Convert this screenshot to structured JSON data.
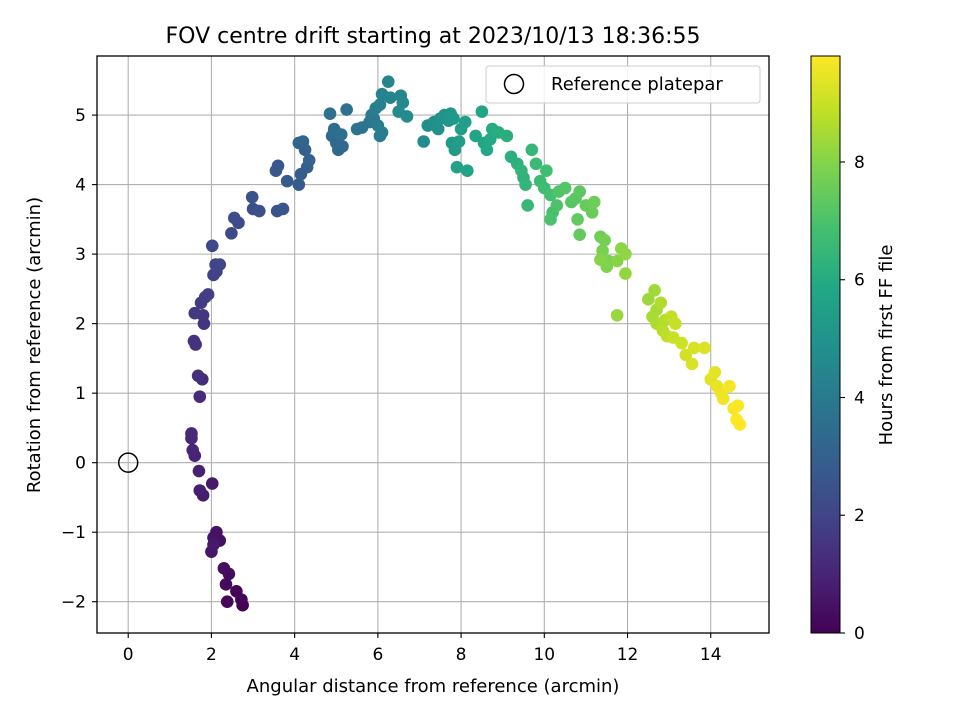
{
  "chart_data": {
    "type": "scatter",
    "title": "FOV centre drift starting at 2023/10/13 18:36:55",
    "xlabel": "Angular distance from reference (arcmin)",
    "ylabel": "Rotation from reference (arcmin)",
    "xlim": [
      -0.75,
      15.4
    ],
    "ylim": [
      -2.45,
      5.85
    ],
    "xticks": [
      0,
      2,
      4,
      6,
      8,
      10,
      12,
      14
    ],
    "yticks": [
      -2,
      -1,
      0,
      1,
      2,
      3,
      4,
      5
    ],
    "xtick_labels": [
      "0",
      "2",
      "4",
      "6",
      "8",
      "10",
      "12",
      "14"
    ],
    "ytick_labels": [
      "−2",
      "−1",
      "0",
      "1",
      "2",
      "3",
      "4",
      "5"
    ],
    "grid": true,
    "legend": {
      "placement": "top-right",
      "entries": [
        "Reference platepar"
      ]
    },
    "reference_point": {
      "label": "Reference platepar",
      "x": 0,
      "y": 0,
      "marker": "open-circle"
    },
    "colorbar": {
      "label": "Hours from first FF file",
      "colormap": "viridis",
      "range": [
        0,
        9.8
      ],
      "ticks": [
        0,
        2,
        4,
        6,
        8
      ],
      "tick_labels": [
        "0",
        "2",
        "4",
        "6",
        "8"
      ]
    },
    "series": [
      {
        "values_note_fields": [
          "x",
          "y",
          "hours"
        ],
        "points": [
          [
            2.75,
            -2.05,
            0.0
          ],
          [
            2.72,
            -1.97,
            0.06
          ],
          [
            2.6,
            -1.85,
            0.12
          ],
          [
            2.38,
            -2.0,
            0.18
          ],
          [
            2.35,
            -1.75,
            0.24
          ],
          [
            2.42,
            -1.6,
            0.3
          ],
          [
            2.3,
            -1.52,
            0.36
          ],
          [
            2.2,
            -1.12,
            0.42
          ],
          [
            2.12,
            -1.0,
            0.48
          ],
          [
            2.05,
            -1.08,
            0.54
          ],
          [
            2.0,
            -1.28,
            0.6
          ],
          [
            2.05,
            -1.18,
            0.66
          ],
          [
            2.02,
            -0.3,
            0.72
          ],
          [
            1.8,
            -0.47,
            0.78
          ],
          [
            1.72,
            -0.4,
            0.84
          ],
          [
            1.7,
            -0.12,
            0.9
          ],
          [
            1.6,
            0.1,
            0.96
          ],
          [
            1.55,
            0.18,
            1.02
          ],
          [
            1.52,
            0.35,
            1.08
          ],
          [
            1.52,
            0.42,
            1.14
          ],
          [
            1.72,
            0.95,
            1.2
          ],
          [
            1.78,
            1.2,
            1.26
          ],
          [
            1.68,
            1.25,
            1.32
          ],
          [
            1.62,
            1.7,
            1.38
          ],
          [
            1.58,
            1.75,
            1.44
          ],
          [
            1.82,
            2.0,
            1.5
          ],
          [
            1.8,
            2.12,
            1.56
          ],
          [
            1.6,
            2.15,
            1.62
          ],
          [
            1.75,
            2.3,
            1.68
          ],
          [
            1.85,
            2.38,
            1.74
          ],
          [
            1.92,
            2.42,
            1.8
          ],
          [
            2.05,
            2.7,
            1.86
          ],
          [
            2.12,
            2.75,
            1.92
          ],
          [
            2.1,
            2.85,
            1.98
          ],
          [
            2.2,
            2.85,
            2.04
          ],
          [
            2.02,
            3.12,
            2.1
          ],
          [
            2.48,
            3.3,
            2.16
          ],
          [
            2.65,
            3.45,
            2.22
          ],
          [
            2.55,
            3.52,
            2.28
          ],
          [
            3.0,
            3.65,
            2.34
          ],
          [
            3.15,
            3.62,
            2.4
          ],
          [
            2.98,
            3.82,
            2.46
          ],
          [
            3.58,
            3.62,
            2.52
          ],
          [
            3.72,
            3.65,
            2.58
          ],
          [
            3.55,
            4.2,
            2.64
          ],
          [
            3.6,
            4.27,
            2.7
          ],
          [
            3.82,
            4.05,
            2.76
          ],
          [
            4.1,
            4.0,
            2.82
          ],
          [
            4.15,
            4.15,
            2.88
          ],
          [
            4.3,
            4.25,
            2.94
          ],
          [
            4.35,
            4.35,
            3.0
          ],
          [
            4.25,
            4.5,
            3.06
          ],
          [
            4.1,
            4.6,
            3.12
          ],
          [
            4.2,
            4.62,
            3.18
          ],
          [
            5.05,
            4.5,
            3.24
          ],
          [
            5.15,
            4.55,
            3.3
          ],
          [
            5.0,
            4.6,
            3.36
          ],
          [
            4.9,
            4.7,
            3.42
          ],
          [
            4.95,
            4.8,
            3.48
          ],
          [
            5.12,
            4.72,
            3.54
          ],
          [
            4.85,
            5.02,
            3.6
          ],
          [
            5.25,
            5.08,
            3.66
          ],
          [
            5.5,
            4.8,
            3.72
          ],
          [
            5.62,
            4.82,
            3.78
          ],
          [
            5.8,
            4.9,
            3.84
          ],
          [
            5.9,
            4.95,
            3.9
          ],
          [
            5.85,
            5.0,
            3.96
          ],
          [
            6.0,
            4.85,
            4.02
          ],
          [
            6.05,
            4.7,
            4.08
          ],
          [
            6.1,
            4.75,
            4.14
          ],
          [
            5.95,
            5.1,
            4.2
          ],
          [
            6.05,
            5.15,
            4.26
          ],
          [
            6.1,
            5.3,
            4.32
          ],
          [
            6.25,
            5.48,
            4.38
          ],
          [
            6.3,
            5.25,
            4.44
          ],
          [
            6.55,
            5.28,
            4.5
          ],
          [
            6.6,
            5.18,
            4.56
          ],
          [
            6.5,
            5.05,
            4.62
          ],
          [
            6.7,
            4.98,
            4.68
          ],
          [
            7.1,
            4.62,
            4.74
          ],
          [
            7.2,
            4.85,
            4.8
          ],
          [
            7.35,
            4.9,
            4.86
          ],
          [
            7.45,
            4.8,
            4.92
          ],
          [
            7.5,
            4.95,
            4.98
          ],
          [
            7.6,
            5.0,
            5.04
          ],
          [
            7.7,
            4.92,
            5.1
          ],
          [
            7.75,
            5.02,
            5.16
          ],
          [
            7.82,
            4.95,
            5.22
          ],
          [
            7.78,
            4.6,
            5.28
          ],
          [
            7.85,
            4.5,
            5.34
          ],
          [
            7.95,
            4.62,
            5.4
          ],
          [
            8.0,
            4.8,
            5.46
          ],
          [
            8.1,
            4.9,
            5.52
          ],
          [
            7.9,
            4.25,
            5.58
          ],
          [
            8.15,
            4.2,
            5.64
          ],
          [
            8.35,
            4.7,
            5.7
          ],
          [
            8.5,
            5.05,
            5.76
          ],
          [
            8.55,
            4.6,
            5.82
          ],
          [
            8.62,
            4.5,
            5.88
          ],
          [
            8.7,
            4.65,
            5.94
          ],
          [
            8.75,
            4.8,
            6.0
          ],
          [
            8.9,
            4.75,
            6.06
          ],
          [
            9.1,
            4.7,
            6.12
          ],
          [
            9.2,
            4.4,
            6.18
          ],
          [
            9.35,
            4.3,
            6.24
          ],
          [
            9.5,
            4.1,
            6.3
          ],
          [
            9.45,
            4.2,
            6.36
          ],
          [
            9.55,
            4.0,
            6.42
          ],
          [
            9.7,
            4.5,
            6.48
          ],
          [
            9.6,
            3.7,
            6.54
          ],
          [
            9.8,
            4.3,
            6.6
          ],
          [
            9.9,
            4.05,
            6.66
          ],
          [
            10.0,
            3.95,
            6.72
          ],
          [
            10.05,
            4.2,
            6.78
          ],
          [
            10.15,
            3.85,
            6.84
          ],
          [
            10.2,
            3.6,
            6.9
          ],
          [
            10.15,
            3.5,
            6.96
          ],
          [
            10.3,
            3.7,
            7.02
          ],
          [
            10.35,
            3.9,
            7.08
          ],
          [
            10.5,
            3.95,
            7.14
          ],
          [
            10.65,
            3.75,
            7.2
          ],
          [
            10.75,
            3.8,
            7.26
          ],
          [
            10.85,
            3.9,
            7.32
          ],
          [
            10.8,
            3.5,
            7.38
          ],
          [
            10.85,
            3.28,
            7.44
          ],
          [
            11.0,
            3.7,
            7.5
          ],
          [
            11.15,
            3.6,
            7.56
          ],
          [
            11.2,
            3.75,
            7.62
          ],
          [
            11.35,
            3.25,
            7.68
          ],
          [
            11.45,
            3.2,
            7.74
          ],
          [
            11.4,
            3.05,
            7.8
          ],
          [
            11.55,
            2.9,
            7.86
          ],
          [
            11.5,
            2.82,
            7.92
          ],
          [
            11.35,
            2.92,
            7.98
          ],
          [
            11.75,
            2.9,
            8.04
          ],
          [
            11.85,
            3.08,
            8.1
          ],
          [
            11.95,
            3.0,
            8.16
          ],
          [
            11.95,
            2.72,
            8.22
          ],
          [
            11.75,
            2.12,
            8.28
          ],
          [
            12.5,
            2.35,
            8.34
          ],
          [
            12.65,
            2.48,
            8.4
          ],
          [
            12.7,
            2.2,
            8.46
          ],
          [
            12.6,
            2.1,
            8.52
          ],
          [
            12.7,
            2.0,
            8.58
          ],
          [
            12.8,
            2.3,
            8.64
          ],
          [
            12.9,
            2.05,
            8.7
          ],
          [
            12.85,
            1.9,
            8.76
          ],
          [
            12.95,
            1.82,
            8.82
          ],
          [
            13.05,
            2.1,
            8.88
          ],
          [
            13.15,
            2.0,
            8.94
          ],
          [
            13.1,
            1.8,
            9.0
          ],
          [
            13.3,
            1.72,
            9.06
          ],
          [
            13.4,
            1.55,
            9.12
          ],
          [
            13.6,
            1.65,
            9.18
          ],
          [
            13.55,
            1.42,
            9.24
          ],
          [
            13.85,
            1.65,
            9.3
          ],
          [
            14.0,
            1.2,
            9.36
          ],
          [
            14.1,
            1.3,
            9.42
          ],
          [
            14.15,
            1.1,
            9.48
          ],
          [
            14.25,
            1.0,
            9.54
          ],
          [
            14.3,
            0.92,
            9.6
          ],
          [
            14.45,
            1.1,
            9.66
          ],
          [
            14.55,
            0.78,
            9.7
          ],
          [
            14.65,
            0.82,
            9.74
          ],
          [
            14.62,
            0.62,
            9.78
          ],
          [
            14.7,
            0.55,
            9.8
          ]
        ]
      }
    ]
  }
}
